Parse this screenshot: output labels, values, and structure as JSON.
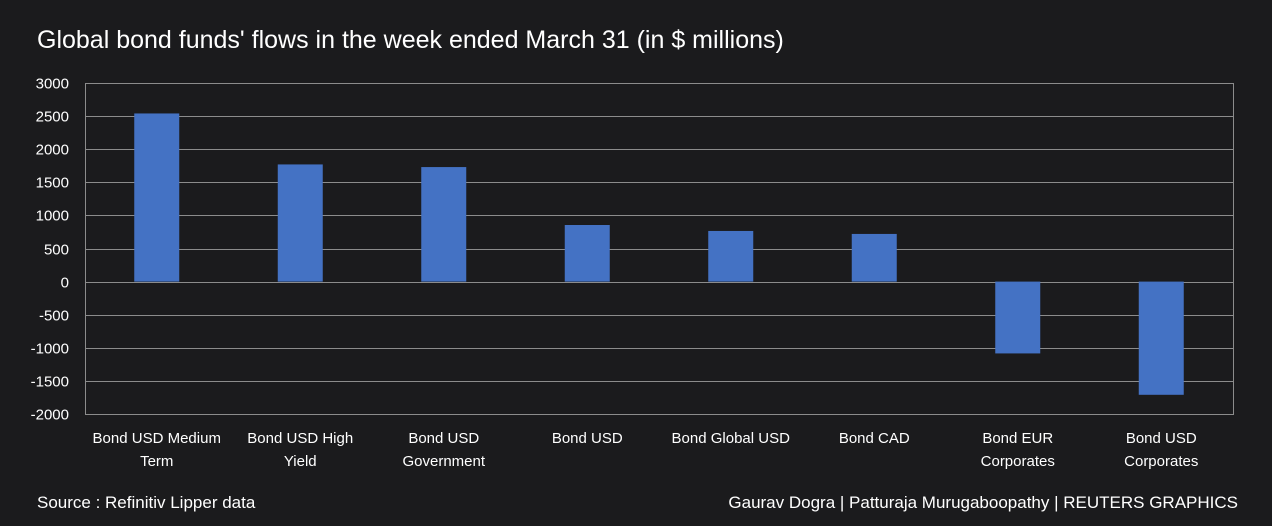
{
  "title": "Global bond funds' flows in the week ended March 31 (in $ millions)",
  "source": "Source : Refinitiv Lipper data",
  "credit": "Gaurav Dogra | Patturaja Murugaboopathy | REUTERS GRAPHICS",
  "colors": {
    "background": "#1b1b1d",
    "bar": "#4472c4",
    "grid": "#8c8c8c",
    "text": "#ffffff"
  },
  "chart_data": {
    "type": "bar",
    "title": "Global bond funds' flows in the week ended March 31 (in $ millions)",
    "xlabel": "",
    "ylabel": "",
    "ylim": [
      -2000,
      3000
    ],
    "yticks": [
      "3000",
      "2500",
      "2000",
      "1500",
      "1000",
      "500",
      "0",
      "-500",
      "-1000",
      "-1500",
      "-2000"
    ],
    "ytick_values": [
      3000,
      2500,
      2000,
      1500,
      1000,
      500,
      0,
      -500,
      -1000,
      -1500,
      -2000
    ],
    "grid": true,
    "categories": [
      [
        "Bond USD Medium",
        "Term"
      ],
      [
        "Bond USD High",
        "Yield"
      ],
      [
        "Bond USD",
        "Government"
      ],
      [
        "Bond USD"
      ],
      [
        "Bond Global USD"
      ],
      [
        "Bond CAD"
      ],
      [
        "Bond EUR",
        "Corporates"
      ],
      [
        "Bond USD",
        "Corporates"
      ]
    ],
    "values": [
      2540,
      1770,
      1730,
      855,
      765,
      720,
      -1085,
      -1710
    ]
  }
}
